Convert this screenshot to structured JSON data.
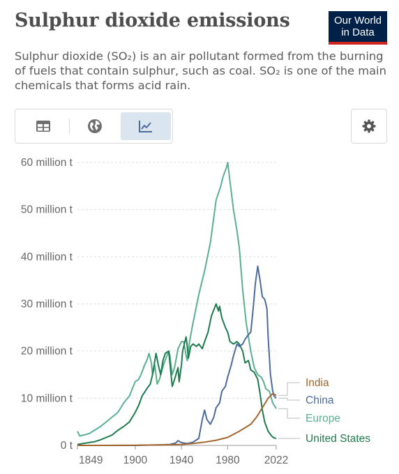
{
  "header": {
    "title": "Sulphur dioxide emissions",
    "subtitle": "Sulphur dioxide (SO₂) is an air pollutant formed from the burning of fuels that contain sulphur, such as coal. SO₂ is one of the main chemicals that forms acid rain.",
    "logo_line1": "Our World",
    "logo_line2": "in Data"
  },
  "toolbar": {
    "icons": [
      "table-icon",
      "globe-icon",
      "line-chart-icon",
      "gear-icon"
    ],
    "active_tab": "chart"
  },
  "colors": {
    "India": "#a2662c",
    "China": "#4c6a9c",
    "Europe": "#59b08e",
    "United States": "#1e7a4f",
    "logo_bg": "#002147",
    "logo_accent": "#ce261e"
  },
  "chart_data": {
    "type": "line",
    "title": "Sulphur dioxide emissions",
    "xlabel": "",
    "ylabel": "",
    "xlim": [
      1850,
      2022
    ],
    "ylim": [
      0,
      60000000
    ],
    "x_ticks": [
      1849,
      1900,
      1940,
      1980,
      2022
    ],
    "y_ticks": [
      {
        "value": 0,
        "label": "0 t"
      },
      {
        "value": 10000000,
        "label": "10 million t"
      },
      {
        "value": 20000000,
        "label": "20 million t"
      },
      {
        "value": 30000000,
        "label": "30 million t"
      },
      {
        "value": 40000000,
        "label": "40 million t"
      },
      {
        "value": 50000000,
        "label": "50 million t"
      },
      {
        "value": 60000000,
        "label": "60 million t"
      }
    ],
    "grid": true,
    "legend": "right, labels at line ends",
    "series": [
      {
        "name": "India",
        "points": [
          [
            1850,
            0
          ],
          [
            1900,
            50000
          ],
          [
            1920,
            100000
          ],
          [
            1940,
            200000
          ],
          [
            1950,
            400000
          ],
          [
            1960,
            700000
          ],
          [
            1970,
            1100000
          ],
          [
            1980,
            1700000
          ],
          [
            1990,
            3000000
          ],
          [
            2000,
            4500000
          ],
          [
            2005,
            6000000
          ],
          [
            2010,
            8000000
          ],
          [
            2015,
            10000000
          ],
          [
            2019,
            11000000
          ],
          [
            2022,
            10600000
          ]
        ]
      },
      {
        "name": "China",
        "points": [
          [
            1850,
            0
          ],
          [
            1900,
            0
          ],
          [
            1920,
            100000
          ],
          [
            1930,
            200000
          ],
          [
            1935,
            500000
          ],
          [
            1937,
            1000000
          ],
          [
            1940,
            600000
          ],
          [
            1945,
            400000
          ],
          [
            1950,
            700000
          ],
          [
            1955,
            1500000
          ],
          [
            1958,
            5500000
          ],
          [
            1960,
            7500000
          ],
          [
            1962,
            5500000
          ],
          [
            1965,
            4500000
          ],
          [
            1968,
            6000000
          ],
          [
            1970,
            8000000
          ],
          [
            1973,
            9000000
          ],
          [
            1975,
            11500000
          ],
          [
            1978,
            12500000
          ],
          [
            1980,
            14500000
          ],
          [
            1983,
            17000000
          ],
          [
            1985,
            19000000
          ],
          [
            1988,
            21500000
          ],
          [
            1990,
            21000000
          ],
          [
            1993,
            21500000
          ],
          [
            1995,
            22500000
          ],
          [
            1998,
            23500000
          ],
          [
            2000,
            24000000
          ],
          [
            2002,
            29000000
          ],
          [
            2004,
            34500000
          ],
          [
            2006,
            38000000
          ],
          [
            2008,
            35000000
          ],
          [
            2010,
            31500000
          ],
          [
            2012,
            31000000
          ],
          [
            2013,
            30000000
          ],
          [
            2014,
            29000000
          ],
          [
            2015,
            23000000
          ],
          [
            2017,
            15000000
          ],
          [
            2019,
            11500000
          ],
          [
            2020,
            10500000
          ],
          [
            2022,
            10000000
          ]
        ]
      },
      {
        "name": "Europe",
        "points": [
          [
            1850,
            3000000
          ],
          [
            1852,
            2000000
          ],
          [
            1860,
            2500000
          ],
          [
            1870,
            4000000
          ],
          [
            1880,
            6000000
          ],
          [
            1885,
            7000000
          ],
          [
            1890,
            9000000
          ],
          [
            1895,
            10500000
          ],
          [
            1900,
            13500000
          ],
          [
            1903,
            14000000
          ],
          [
            1905,
            15000000
          ],
          [
            1908,
            17000000
          ],
          [
            1910,
            18000000
          ],
          [
            1912,
            19500000
          ],
          [
            1914,
            17500000
          ],
          [
            1915,
            15000000
          ],
          [
            1917,
            17000000
          ],
          [
            1919,
            13000000
          ],
          [
            1921,
            14000000
          ],
          [
            1925,
            17500000
          ],
          [
            1929,
            20000000
          ],
          [
            1930,
            19000000
          ],
          [
            1932,
            15000000
          ],
          [
            1934,
            16500000
          ],
          [
            1937,
            20500000
          ],
          [
            1940,
            22000000
          ],
          [
            1942,
            22000000
          ],
          [
            1944,
            19000000
          ],
          [
            1945,
            18000000
          ],
          [
            1947,
            22000000
          ],
          [
            1950,
            26000000
          ],
          [
            1955,
            32000000
          ],
          [
            1960,
            37000000
          ],
          [
            1965,
            43000000
          ],
          [
            1970,
            52000000
          ],
          [
            1974,
            55000000
          ],
          [
            1976,
            57000000
          ],
          [
            1979,
            59000000
          ],
          [
            1980,
            60000000
          ],
          [
            1982,
            56000000
          ],
          [
            1985,
            50000000
          ],
          [
            1988,
            45500000
          ],
          [
            1990,
            42000000
          ],
          [
            1993,
            33000000
          ],
          [
            1996,
            26000000
          ],
          [
            2000,
            20000000
          ],
          [
            2003,
            16500000
          ],
          [
            2006,
            15000000
          ],
          [
            2009,
            14500000
          ],
          [
            2011,
            13500000
          ],
          [
            2013,
            12000000
          ],
          [
            2016,
            11500000
          ],
          [
            2019,
            9000000
          ],
          [
            2022,
            7800000
          ]
        ]
      },
      {
        "name": "United States",
        "points": [
          [
            1850,
            200000
          ],
          [
            1855,
            400000
          ],
          [
            1860,
            600000
          ],
          [
            1865,
            800000
          ],
          [
            1870,
            1200000
          ],
          [
            1875,
            1700000
          ],
          [
            1880,
            2200000
          ],
          [
            1885,
            3200000
          ],
          [
            1890,
            4000000
          ],
          [
            1895,
            5000000
          ],
          [
            1900,
            7000000
          ],
          [
            1903,
            8500000
          ],
          [
            1906,
            10500000
          ],
          [
            1910,
            12000000
          ],
          [
            1913,
            13000000
          ],
          [
            1915,
            15000000
          ],
          [
            1917,
            18000000
          ],
          [
            1918,
            19500000
          ],
          [
            1920,
            17000000
          ],
          [
            1922,
            15000000
          ],
          [
            1924,
            18000000
          ],
          [
            1926,
            19500000
          ],
          [
            1929,
            20000000
          ],
          [
            1931,
            15000000
          ],
          [
            1932,
            12500000
          ],
          [
            1934,
            14000000
          ],
          [
            1937,
            16500000
          ],
          [
            1938,
            13500000
          ],
          [
            1940,
            17000000
          ],
          [
            1941,
            20000000
          ],
          [
            1943,
            22000000
          ],
          [
            1944,
            23000000
          ],
          [
            1945,
            21000000
          ],
          [
            1946,
            18500000
          ],
          [
            1948,
            21000000
          ],
          [
            1950,
            21500000
          ],
          [
            1953,
            21000000
          ],
          [
            1955,
            21500000
          ],
          [
            1958,
            20500000
          ],
          [
            1960,
            22000000
          ],
          [
            1963,
            24000000
          ],
          [
            1966,
            27500000
          ],
          [
            1970,
            30000000
          ],
          [
            1972,
            28500000
          ],
          [
            1973,
            29500000
          ],
          [
            1975,
            27000000
          ],
          [
            1978,
            25000000
          ],
          [
            1980,
            24000000
          ],
          [
            1982,
            22000000
          ],
          [
            1985,
            21500000
          ],
          [
            1988,
            22000000
          ],
          [
            1990,
            21500000
          ],
          [
            1993,
            20000000
          ],
          [
            1995,
            17500000
          ],
          [
            1998,
            18000000
          ],
          [
            2000,
            16000000
          ],
          [
            2003,
            15500000
          ],
          [
            2006,
            14000000
          ],
          [
            2008,
            11000000
          ],
          [
            2010,
            7500000
          ],
          [
            2012,
            5000000
          ],
          [
            2015,
            3000000
          ],
          [
            2018,
            2000000
          ],
          [
            2020,
            1600000
          ],
          [
            2022,
            1500000
          ]
        ]
      }
    ]
  }
}
